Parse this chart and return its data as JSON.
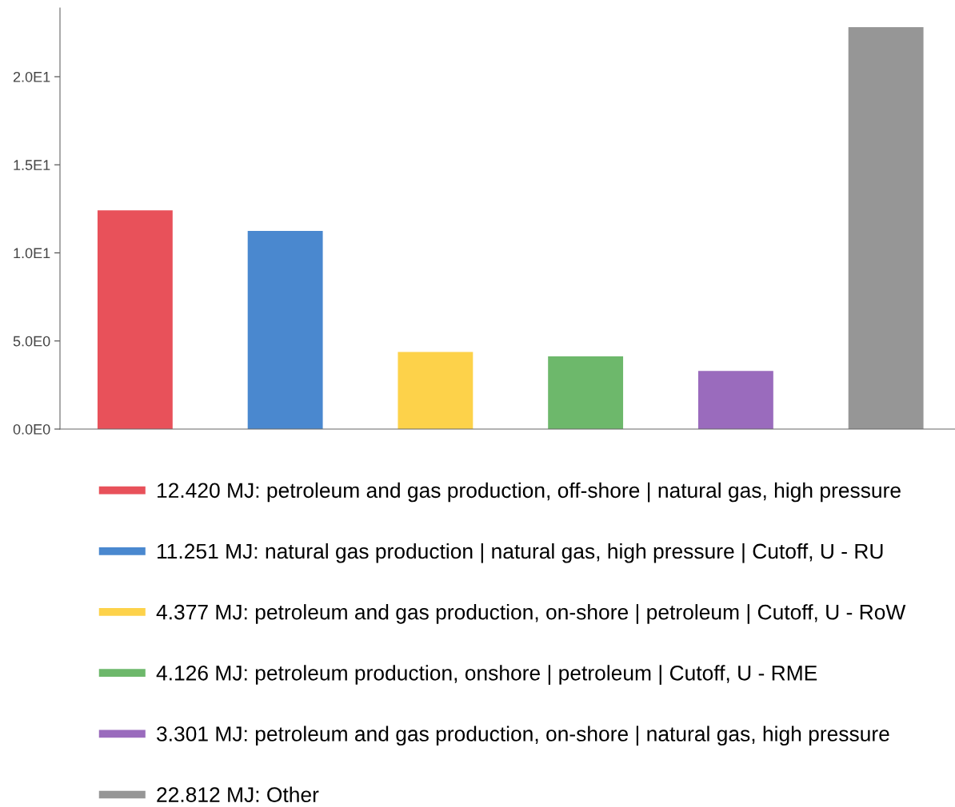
{
  "chart_data": {
    "type": "bar",
    "categories": [
      null,
      null,
      null,
      null,
      null,
      null
    ],
    "series": [
      {
        "name": "12.420 MJ: petroleum and gas production, off-shore | natural gas, high pressure",
        "color": "#e8515a",
        "values": [
          12.42,
          null,
          null,
          null,
          null,
          null
        ]
      },
      {
        "name": "11.251 MJ: natural gas production | natural gas, high pressure | Cutoff, U - RU",
        "color": "#4a88cf",
        "values": [
          null,
          11.251,
          null,
          null,
          null,
          null
        ]
      },
      {
        "name": "4.377 MJ: petroleum and gas production, on-shore | petroleum | Cutoff, U - RoW",
        "color": "#fdd24a",
        "values": [
          null,
          null,
          4.377,
          null,
          null,
          null
        ]
      },
      {
        "name": "4.126 MJ: petroleum production, onshore | petroleum | Cutoff, U - RME",
        "color": "#6db86b",
        "values": [
          null,
          null,
          null,
          4.126,
          null,
          null
        ]
      },
      {
        "name": "3.301 MJ: petroleum and gas production, on-shore | natural gas, high pressure",
        "color": "#9a6bbd",
        "values": [
          null,
          null,
          null,
          null,
          3.301,
          null
        ]
      },
      {
        "name": "22.812 MJ: Other",
        "color": "#969696",
        "values": [
          null,
          null,
          null,
          null,
          null,
          22.812
        ]
      }
    ],
    "ylim": [
      0,
      23.9
    ],
    "yticks": [
      {
        "value": 0,
        "label": "0.0E0"
      },
      {
        "value": 5,
        "label": "5.0E0"
      },
      {
        "value": 10,
        "label": "1.0E1"
      },
      {
        "value": 15,
        "label": "1.5E1"
      },
      {
        "value": 20,
        "label": "2.0E1"
      }
    ],
    "grid": false,
    "legend": "bottom",
    "tick_labels": "y"
  }
}
